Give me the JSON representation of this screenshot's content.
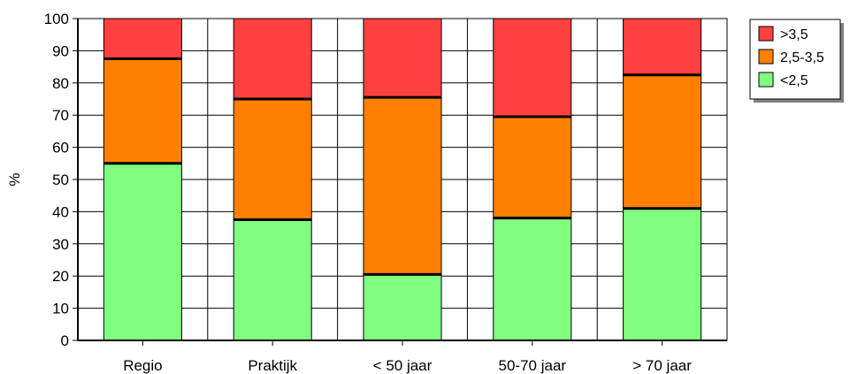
{
  "chart_data": {
    "type": "bar",
    "stacked": true,
    "categories": [
      "Regio",
      "Praktijk",
      "< 50 jaar",
      "50-70 jaar",
      "> 70 jaar"
    ],
    "series": [
      {
        "name": "<2,5",
        "color": "#80ff80",
        "values": [
          55,
          37.5,
          20.5,
          38,
          41
        ]
      },
      {
        "name": "2,5-3,5",
        "color": "#ff8000",
        "values": [
          32.5,
          37.5,
          55,
          31.5,
          41.5
        ]
      },
      {
        "name": ">3,5",
        "color": "#ff4040",
        "values": [
          12.5,
          25,
          24.5,
          30.5,
          17.5
        ]
      }
    ],
    "xlabel": "",
    "ylabel": "%",
    "ylim": [
      0,
      100
    ],
    "yticks": [
      0,
      10,
      20,
      30,
      40,
      50,
      60,
      70,
      80,
      90,
      100
    ],
    "grid": true,
    "legend": {
      "placement": "top-right",
      "entries": [
        ">3,5",
        "2,5-3,5",
        "<2,5"
      ]
    }
  }
}
